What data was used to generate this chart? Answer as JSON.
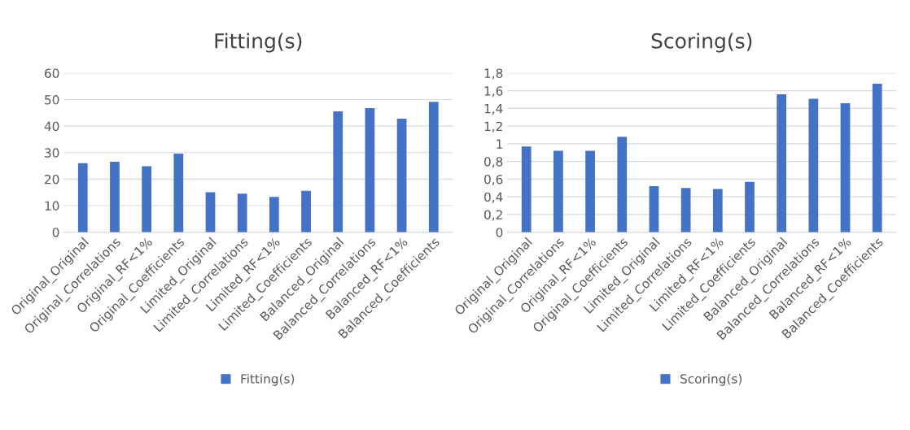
{
  "chart_data": [
    {
      "type": "bar",
      "title": "Fitting(s)",
      "categories": [
        "Original_Original",
        "Original_Correlations",
        "Original_RF<1%",
        "Original_Coefficients",
        "Limited_Original",
        "Limited_Correlations",
        "Limited_RF<1%",
        "Limited_Coefficients",
        "Balanced_Original",
        "Balanced_Correlations",
        "Balanced_RF<1%",
        "Balanced_Coefficients"
      ],
      "series": [
        {
          "name": "Fitting(s)",
          "color": "#4472c4",
          "values": [
            26.0,
            26.6,
            24.9,
            29.6,
            15.1,
            14.5,
            13.3,
            15.6,
            45.6,
            46.8,
            42.8,
            49.2
          ]
        }
      ],
      "ylim": [
        0,
        60
      ],
      "yticks": [
        0,
        10,
        20,
        30,
        40,
        50,
        60
      ],
      "grid": "y",
      "legend": "bottom"
    },
    {
      "type": "bar",
      "title": "Scoring(s)",
      "categories": [
        "Original_Original",
        "Original_Correlations",
        "Original_RF<1%",
        "Original_Coefficients",
        "Limited_Original",
        "Limited_Correlations",
        "Limited_RF<1%",
        "Limited_Coefficients",
        "Balanced_Original",
        "Balanced_Correlations",
        "Balanced_RF<1%",
        "Balanced_Coefficients"
      ],
      "series": [
        {
          "name": "Scoring(s)",
          "color": "#4472c4",
          "values": [
            0.97,
            0.92,
            0.92,
            1.08,
            0.52,
            0.5,
            0.49,
            0.57,
            1.56,
            1.51,
            1.46,
            1.68
          ]
        }
      ],
      "ylim": [
        0,
        1.8
      ],
      "yticks": [
        0,
        {
          "value": 0.2,
          "label": "0,2"
        },
        {
          "value": 0.4,
          "label": "0,4"
        },
        {
          "value": 0.6,
          "label": "0,6"
        },
        {
          "value": 0.8,
          "label": "0,8"
        },
        1,
        {
          "value": 1.2,
          "label": "1,2"
        },
        {
          "value": 1.4,
          "label": "1,4"
        },
        {
          "value": 1.6,
          "label": "1,6"
        },
        {
          "value": 1.8,
          "label": "1,8"
        }
      ],
      "grid": "y",
      "legend": "bottom"
    }
  ]
}
